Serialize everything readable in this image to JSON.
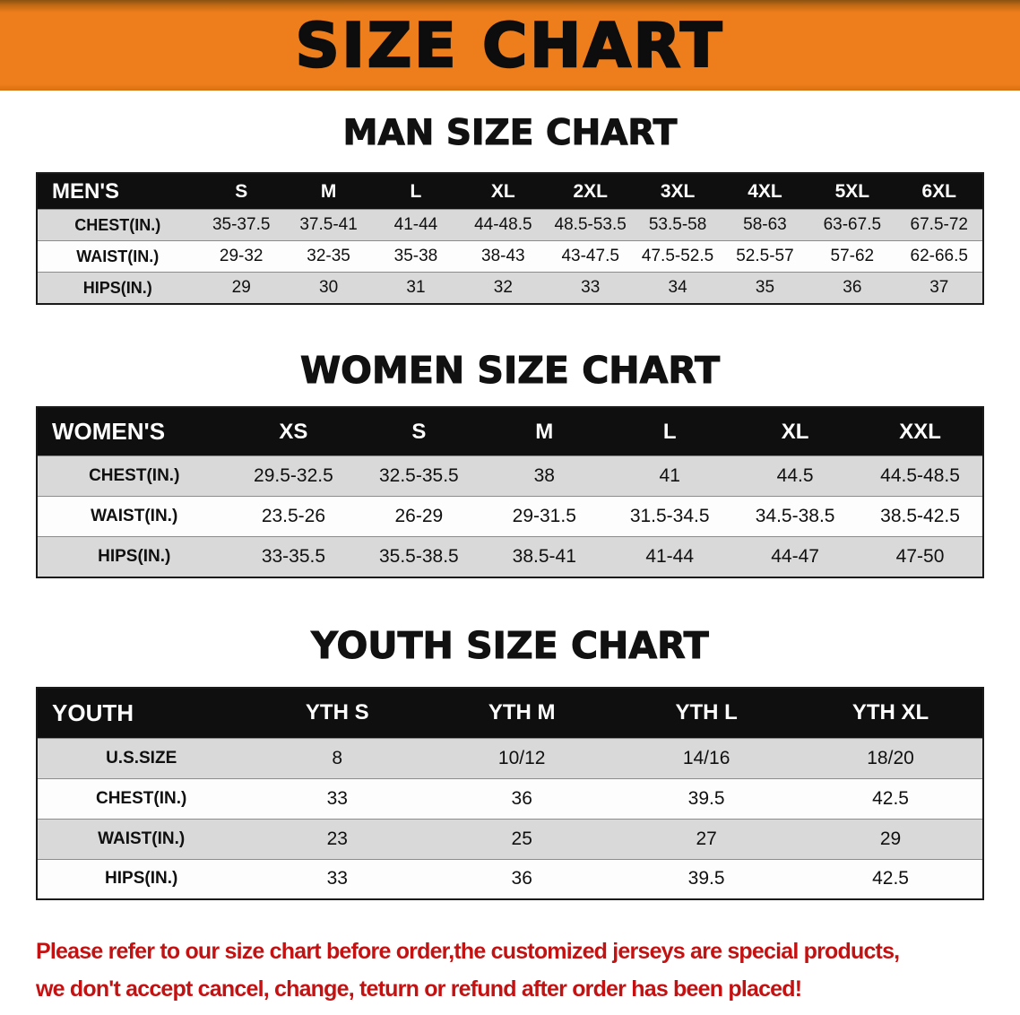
{
  "banner": {
    "title": "SIZE CHART",
    "bg_color": "#EE7E1B",
    "text_color": "#0D0D0D"
  },
  "colors": {
    "table_header_bg": "#0F0F0F",
    "table_header_text": "#FFFFFF",
    "row_alt_bg": "#D9D9D9",
    "row_bg": "#FDFDFD",
    "footer_text": "#C41212"
  },
  "footer": {
    "line1": "Please refer to our size chart before order,the customized jerseys are special products,",
    "line2": "we don't accept cancel, change, teturn or refund after order has been placed!"
  },
  "chart_data": [
    {
      "type": "table",
      "title": "MAN SIZE CHART",
      "corner_label": "MEN'S",
      "columns": [
        "S",
        "M",
        "L",
        "XL",
        "2XL",
        "3XL",
        "4XL",
        "5XL",
        "6XL"
      ],
      "rows": [
        {
          "label": "CHEST(IN.)",
          "values": [
            "35-37.5",
            "37.5-41",
            "41-44",
            "44-48.5",
            "48.5-53.5",
            "53.5-58",
            "58-63",
            "63-67.5",
            "67.5-72"
          ]
        },
        {
          "label": "WAIST(IN.)",
          "values": [
            "29-32",
            "32-35",
            "35-38",
            "38-43",
            "43-47.5",
            "47.5-52.5",
            "52.5-57",
            "57-62",
            "62-66.5"
          ]
        },
        {
          "label": "HIPS(IN.)",
          "values": [
            "29",
            "30",
            "31",
            "32",
            "33",
            "34",
            "35",
            "36",
            "37"
          ]
        }
      ]
    },
    {
      "type": "table",
      "title": "WOMEN SIZE CHART",
      "corner_label": "WOMEN'S",
      "columns": [
        "XS",
        "S",
        "M",
        "L",
        "XL",
        "XXL"
      ],
      "rows": [
        {
          "label": "CHEST(IN.)",
          "values": [
            "29.5-32.5",
            "32.5-35.5",
            "38",
            "41",
            "44.5",
            "44.5-48.5"
          ]
        },
        {
          "label": "WAIST(IN.)",
          "values": [
            "23.5-26",
            "26-29",
            "29-31.5",
            "31.5-34.5",
            "34.5-38.5",
            "38.5-42.5"
          ]
        },
        {
          "label": "HIPS(IN.)",
          "values": [
            "33-35.5",
            "35.5-38.5",
            "38.5-41",
            "41-44",
            "44-47",
            "47-50"
          ]
        }
      ]
    },
    {
      "type": "table",
      "title": "YOUTH SIZE CHART",
      "corner_label": "YOUTH",
      "columns": [
        "YTH S",
        "YTH M",
        "YTH L",
        "YTH XL"
      ],
      "rows": [
        {
          "label": "U.S.SIZE",
          "values": [
            "8",
            "10/12",
            "14/16",
            "18/20"
          ]
        },
        {
          "label": "CHEST(IN.)",
          "values": [
            "33",
            "36",
            "39.5",
            "42.5"
          ]
        },
        {
          "label": "WAIST(IN.)",
          "values": [
            "23",
            "25",
            "27",
            "29"
          ]
        },
        {
          "label": "HIPS(IN.)",
          "values": [
            "33",
            "36",
            "39.5",
            "42.5"
          ]
        }
      ]
    }
  ]
}
